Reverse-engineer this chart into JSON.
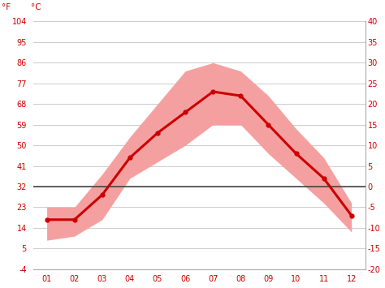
{
  "months": [
    1,
    2,
    3,
    4,
    5,
    6,
    7,
    8,
    9,
    10,
    11,
    12
  ],
  "month_labels": [
    "01",
    "02",
    "03",
    "04",
    "05",
    "06",
    "07",
    "08",
    "09",
    "10",
    "11",
    "12"
  ],
  "mean_temp": [
    -8,
    -8,
    -2,
    7,
    13,
    18,
    23,
    22,
    15,
    8,
    2,
    -7
  ],
  "temp_max": [
    -5,
    -5,
    3,
    12,
    20,
    28,
    30,
    28,
    22,
    14,
    7,
    -4
  ],
  "temp_min": [
    -13,
    -12,
    -8,
    2,
    6,
    10,
    15,
    15,
    8,
    2,
    -4,
    -11
  ],
  "line_color": "#cc0000",
  "band_color": "#f5a0a0",
  "zero_line_color": "#444444",
  "label_f": "°F",
  "label_c": "°C",
  "yticks_c": [
    40,
    35,
    30,
    25,
    20,
    15,
    10,
    5,
    0,
    -5,
    -10,
    -15,
    -20
  ],
  "yticks_f": [
    104,
    95,
    86,
    77,
    68,
    59,
    50,
    41,
    32,
    23,
    14,
    5,
    -4
  ],
  "ylim_c": [
    -20,
    40
  ],
  "background_color": "#ffffff",
  "grid_color": "#cccccc",
  "tick_label_color": "#cc0000",
  "spine_color": "#aaaaaa"
}
